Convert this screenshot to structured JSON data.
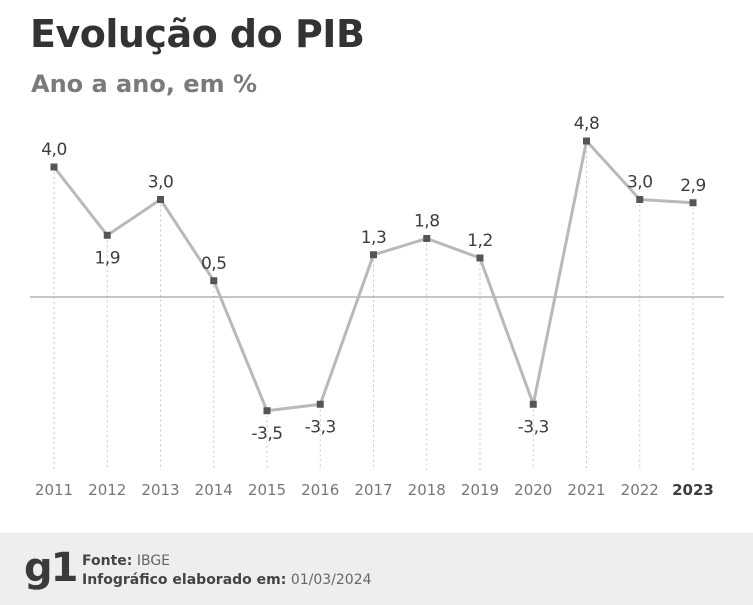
{
  "title": "Evolução do PIB",
  "subtitle": "Ano a ano, em %",
  "chart_data": {
    "type": "line",
    "x": [
      "2011",
      "2012",
      "2013",
      "2014",
      "2015",
      "2016",
      "2017",
      "2018",
      "2019",
      "2020",
      "2021",
      "2022",
      "2023"
    ],
    "values": [
      4.0,
      1.9,
      3.0,
      0.5,
      -3.5,
      -3.3,
      1.3,
      1.8,
      1.2,
      -3.3,
      4.8,
      3.0,
      2.9
    ],
    "value_labels": [
      "4,0",
      "1,9",
      "3,0",
      "0,5",
      "-3,5",
      "-3,3",
      "1,3",
      "1,8",
      "1,2",
      "-3,3",
      "4,8",
      "3,0",
      "2,9"
    ],
    "bold_x": "2023",
    "line_color": "#b9b9b9",
    "marker_color": "#555555",
    "grid": "vertical dotted lines per year",
    "zero_line": true
  },
  "footer": {
    "logo": "g1",
    "source_label": "Fonte:",
    "source_value": "IBGE",
    "date_label": "Infográfico elaborado em:",
    "date_value": "01/03/2024"
  }
}
